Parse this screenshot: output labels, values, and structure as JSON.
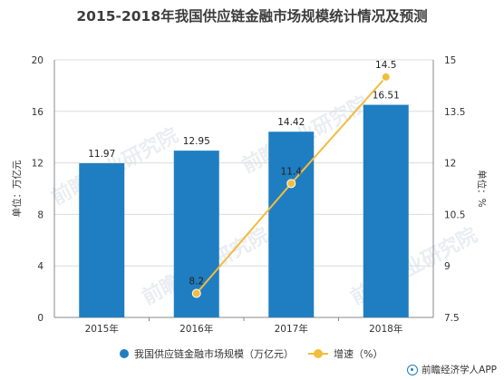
{
  "title": "2015-2018年我国供应链金融市场规模统计情况及预测",
  "source": "前瞻经济学人APP",
  "colors": {
    "bar": "#1f7ec1",
    "line": "#f2bc3f",
    "axis": "#888888",
    "grid": "#dcdcdc",
    "watermark": "#d9dfe6"
  },
  "chart_data": {
    "type": "bar",
    "categories": [
      "2015年",
      "2016年",
      "2017年",
      "2018年"
    ],
    "series": [
      {
        "name": "我国供应链金融市场规模（万亿元）",
        "type": "bar",
        "axis": "left",
        "values": [
          11.97,
          12.95,
          14.42,
          16.51
        ],
        "labels": [
          "11.97",
          "12.95",
          "14.42",
          "16.51"
        ]
      },
      {
        "name": "增速（%）",
        "type": "line",
        "axis": "right",
        "values": [
          null,
          8.2,
          11.4,
          14.5
        ],
        "labels": [
          "",
          "8.2",
          "11.4",
          "14.5"
        ]
      }
    ],
    "y_left": {
      "label": "单位：万亿元",
      "min": 0,
      "max": 20,
      "ticks": [
        "0",
        "4",
        "8",
        "12",
        "16",
        "20"
      ]
    },
    "y_right": {
      "label": "单位：%",
      "min": 7.5,
      "max": 15,
      "ticks": [
        "7.5",
        "9",
        "10.5",
        "12",
        "13.5",
        "15"
      ]
    },
    "grid": true,
    "legend_position": "bottom"
  }
}
